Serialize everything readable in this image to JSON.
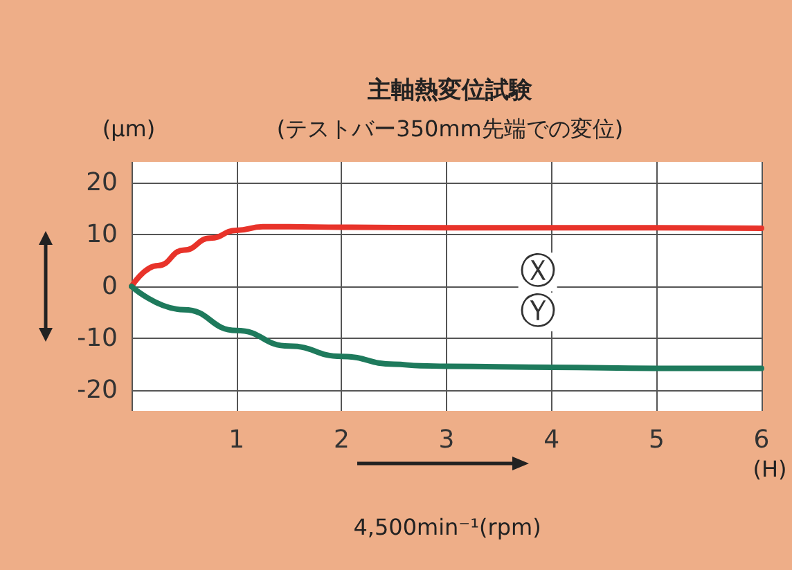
{
  "chart_data": {
    "type": "line",
    "title": "主軸熱変位試験",
    "subtitle": "(テストバー350mm先端での変位)",
    "ylabel": "(μm)",
    "xlabel": "(H)",
    "annotations": [
      "4,500min⁻¹(rpm)"
    ],
    "series": [
      {
        "name": "Ⓧ",
        "color": "#e8332a",
        "x": [
          0,
          0.25,
          0.5,
          0.75,
          1,
          1.25,
          1.5,
          2,
          3,
          4,
          5,
          6
        ],
        "values": [
          0,
          4,
          7,
          9.3,
          10.8,
          11.5,
          11.5,
          11.4,
          11.3,
          11.3,
          11.3,
          11.2
        ]
      },
      {
        "name": "Ⓨ",
        "color": "#1e7a5c",
        "x": [
          0,
          0.5,
          1,
          1.5,
          2,
          2.5,
          2.75,
          3,
          4,
          5,
          6
        ],
        "values": [
          0,
          -4.5,
          -8.5,
          -11.5,
          -13.5,
          -15,
          -15.3,
          -15.4,
          -15.6,
          -15.8,
          -15.8
        ]
      }
    ],
    "xlim": [
      0,
      6
    ],
    "xticks": [
      {
        "value": 0,
        "label": null
      },
      1,
      2,
      3,
      4,
      5,
      6
    ],
    "ylim": [
      -24,
      24
    ],
    "yticks": [
      -20,
      -10,
      0,
      10,
      20
    ],
    "grid": true,
    "legend": false,
    "marker": "none",
    "line_style": "solid"
  }
}
